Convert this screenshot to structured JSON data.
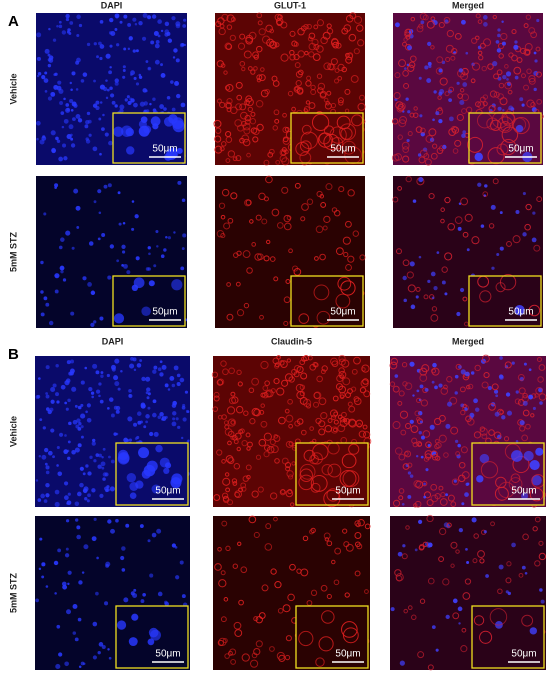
{
  "panels": [
    {
      "label": "A",
      "columns": [
        "DAPI",
        "GLUT-1",
        "Merged"
      ],
      "rows": [
        "Vehicle",
        "5mM STZ"
      ]
    },
    {
      "label": "B",
      "columns": [
        "DAPI",
        "Claudin-5",
        "Merged"
      ],
      "rows": [
        "Vehicle",
        "5mM STZ"
      ]
    }
  ],
  "scale_bar": "50μm"
}
